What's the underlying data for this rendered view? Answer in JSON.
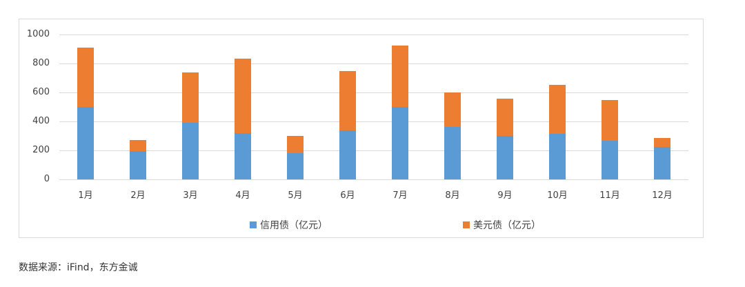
{
  "chart_data": {
    "type": "bar",
    "stacked": true,
    "title": "",
    "xlabel": "",
    "ylabel": "",
    "ylim": [
      0,
      1000
    ],
    "yticks": [
      0,
      200,
      400,
      600,
      800,
      1000
    ],
    "grid": true,
    "legend_position": "bottom",
    "categories": [
      "1月",
      "2月",
      "3月",
      "4月",
      "5月",
      "6月",
      "7月",
      "8月",
      "9月",
      "10月",
      "11月",
      "12月"
    ],
    "series": [
      {
        "name": "信用债（亿元）",
        "color": "#5b9bd5",
        "values": [
          500,
          195,
          390,
          320,
          182,
          337,
          500,
          362,
          300,
          315,
          265,
          225
        ]
      },
      {
        "name": "美元债（亿元）",
        "color": "#ed7d31",
        "values": [
          410,
          75,
          350,
          515,
          118,
          410,
          425,
          238,
          257,
          337,
          285,
          60
        ]
      }
    ],
    "totals": [
      910,
      270,
      740,
      835,
      300,
      747,
      925,
      600,
      557,
      652,
      550,
      285
    ]
  },
  "source_note": "数据来源：iFind，东方金诚"
}
